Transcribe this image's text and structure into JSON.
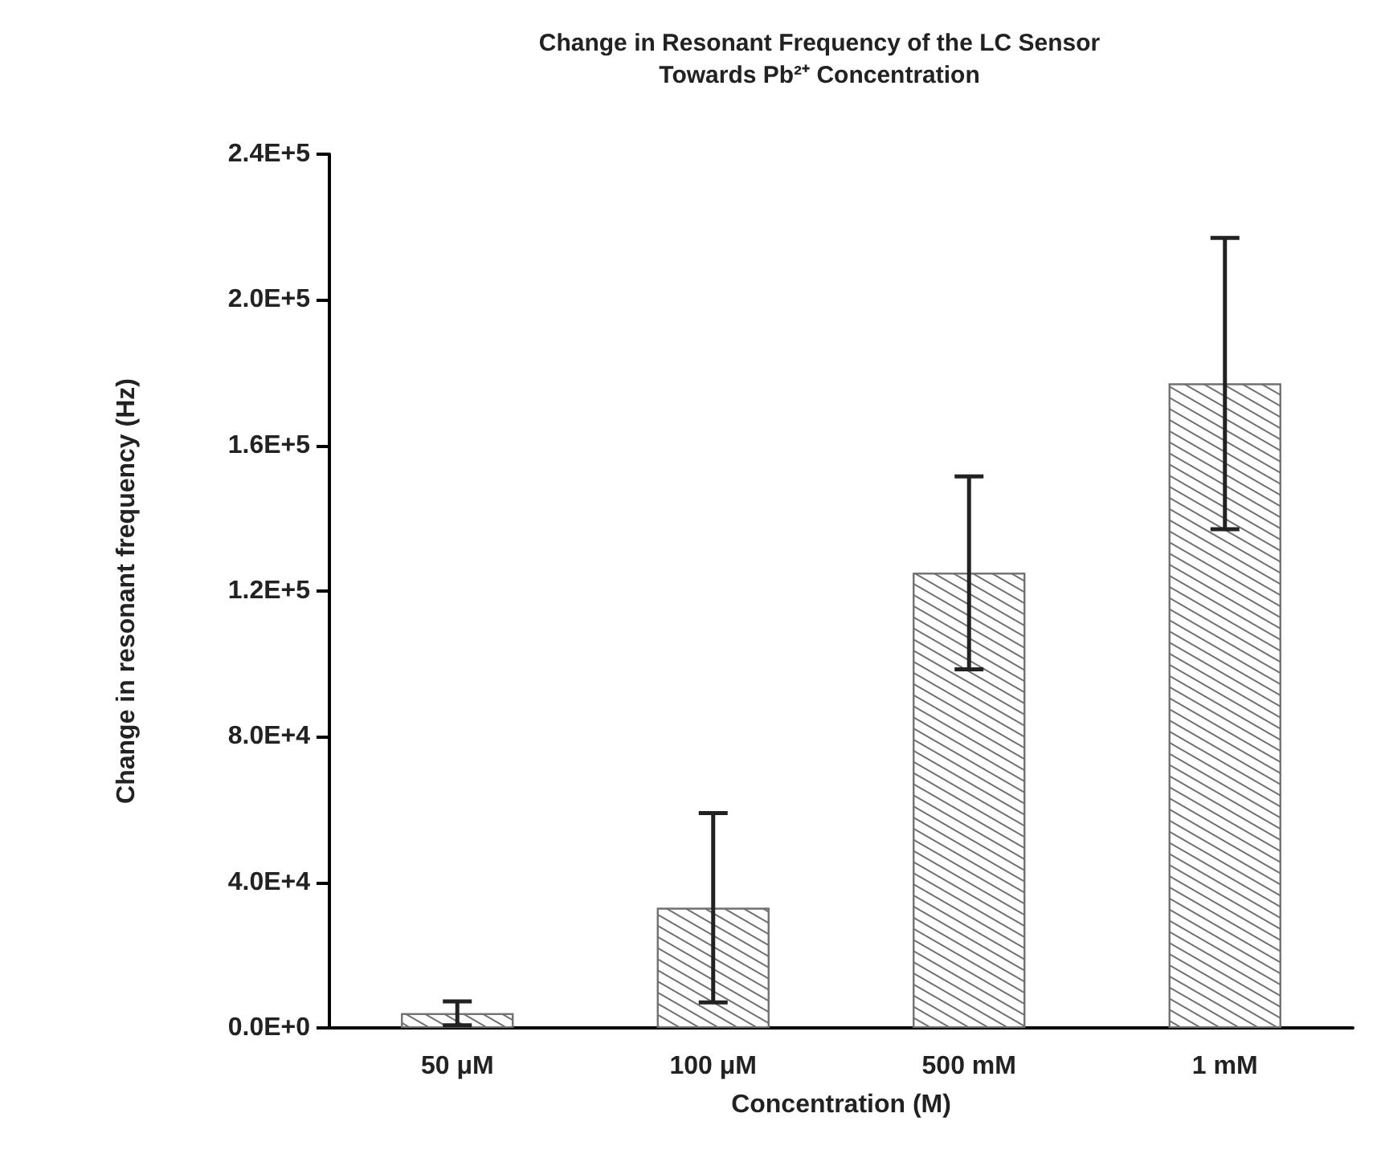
{
  "chart_data": {
    "type": "bar",
    "title": "Change in Resonant Frequency of the LC Sensor\nTowards Pb²⁺ Concentration",
    "xlabel": "Concentration (M)",
    "ylabel": "Change in resonant frequency (Hz)",
    "categories": [
      "50 μM",
      "100 μM",
      "500 mM",
      "1 mM"
    ],
    "values": [
      4000,
      33000,
      125000,
      177000
    ],
    "errors": [
      3300,
      26000,
      26500,
      40000
    ],
    "color": "#707070",
    "ylim": [
      0,
      240000
    ],
    "yticks": [
      {
        "value": 0,
        "label": "0.0E+0"
      },
      {
        "value": 40000,
        "label": "4.0E+4"
      },
      {
        "value": 80000,
        "label": "8.0E+4"
      },
      {
        "value": 120000,
        "label": "1.2E+5"
      },
      {
        "value": 160000,
        "label": "1.6E+5"
      },
      {
        "value": 200000,
        "label": "2.0E+5"
      },
      {
        "value": 240000,
        "label": "2.4E+5"
      }
    ],
    "grid": false
  }
}
